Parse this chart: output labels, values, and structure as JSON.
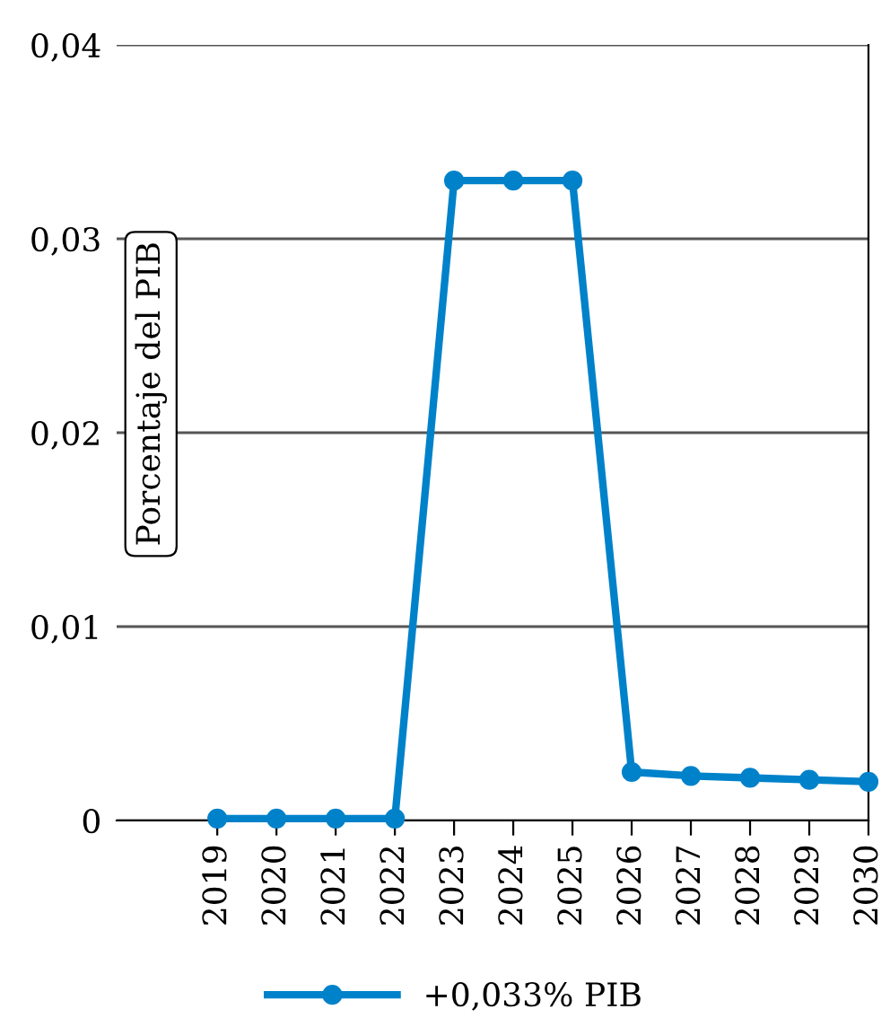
{
  "chart_data": {
    "type": "line",
    "ylabel": "Porcentaje del PIB",
    "x": [
      2019,
      2020,
      2021,
      2022,
      2023,
      2024,
      2025,
      2026,
      2027,
      2028,
      2029,
      2030
    ],
    "series": [
      {
        "name": "+0,033% PIB",
        "color": "#0082ca",
        "values": [
          0.0001,
          0.0001,
          0.0001,
          0.0001,
          0.033,
          0.033,
          0.033,
          0.0025,
          0.0023,
          0.0022,
          0.0021,
          0.002
        ]
      }
    ],
    "xlim": [
      2017.3,
      2030
    ],
    "xticks": [
      2019,
      2020,
      2021,
      2022,
      2023,
      2024,
      2025,
      2026,
      2027,
      2028,
      2029,
      2030
    ],
    "ylim": [
      0,
      0.04
    ],
    "yticks": [
      {
        "value": 0,
        "label": "0"
      },
      {
        "value": 0.01,
        "label": "0,01"
      },
      {
        "value": 0.02,
        "label": "0,02"
      },
      {
        "value": 0.03,
        "label": "0,03"
      },
      {
        "value": 0.04,
        "label": "0,04"
      }
    ],
    "grid": "y",
    "legend": "bottom",
    "marker": "circle",
    "line_style": "solid"
  }
}
